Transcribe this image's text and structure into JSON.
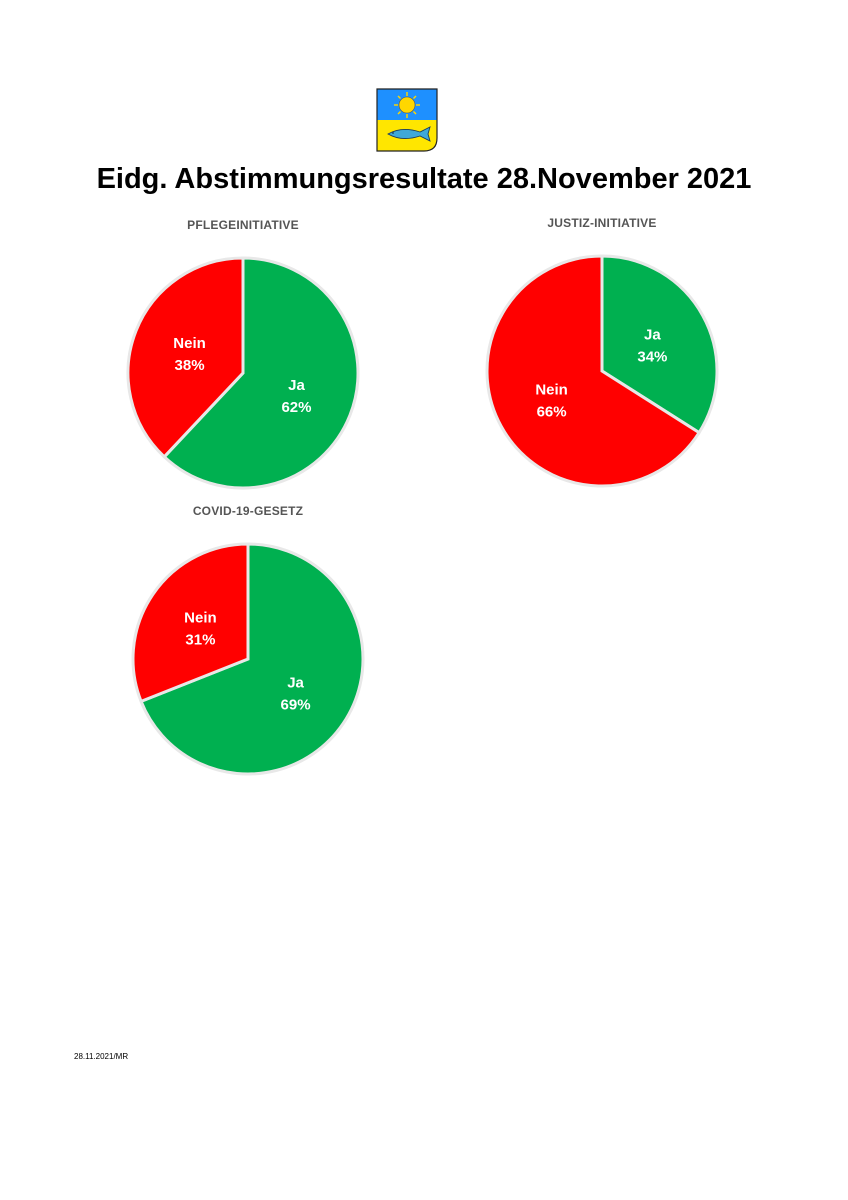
{
  "page": {
    "title": "Eidg. Abstimmungsresultate 28.November 2021",
    "footer_note": "28.11.2021/MR"
  },
  "logo": {
    "name": "municipal-coat-of-arms",
    "colors": {
      "sky": "#1e90ff",
      "sun": "#ffd700",
      "field": "#ffe600",
      "fish": "#3fa8d8"
    }
  },
  "colors": {
    "ja": "#00b050",
    "nein": "#ff0000"
  },
  "chart_data": [
    {
      "type": "pie",
      "title": "PFLEGEINITIATIVE",
      "slices": [
        {
          "label": "Ja",
          "value": 62,
          "display": "62%"
        },
        {
          "label": "Nein",
          "value": 38,
          "display": "38%"
        }
      ]
    },
    {
      "type": "pie",
      "title": "JUSTIZ-INITIATIVE",
      "slices": [
        {
          "label": "Ja",
          "value": 34,
          "display": "34%"
        },
        {
          "label": "Nein",
          "value": 66,
          "display": "66%"
        }
      ]
    },
    {
      "type": "pie",
      "title": "COVID-19-GESETZ",
      "slices": [
        {
          "label": "Ja",
          "value": 69,
          "display": "69%"
        },
        {
          "label": "Nein",
          "value": 31,
          "display": "31%"
        }
      ]
    }
  ]
}
